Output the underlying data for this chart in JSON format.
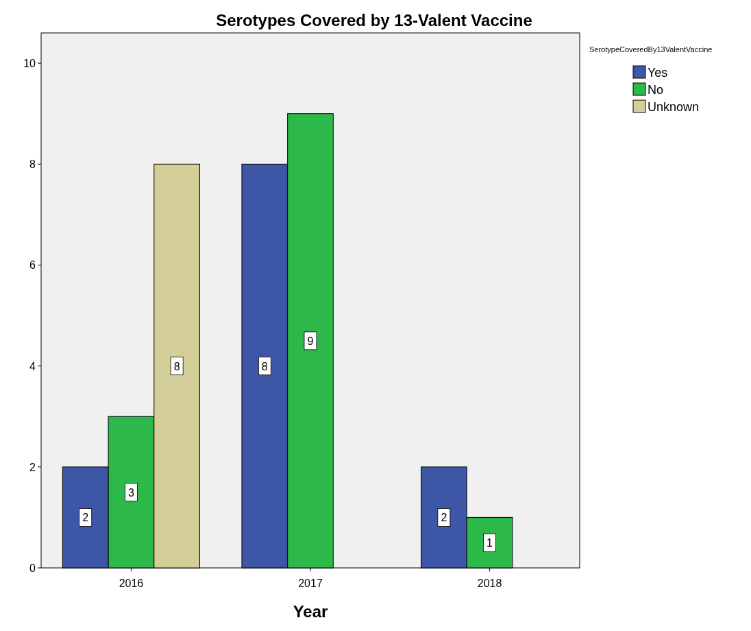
{
  "chart_data": {
    "type": "bar",
    "title": "Serotypes Covered by 13-Valent Vaccine",
    "xlabel": "Year",
    "legend_title": "SerotypeCoveredBy13ValentVaccine",
    "categories": [
      "2016",
      "2017",
      "2018"
    ],
    "series": [
      {
        "name": "Yes",
        "color": "#3d56a6",
        "values": [
          2,
          8,
          2
        ]
      },
      {
        "name": "No",
        "color": "#2db84a",
        "values": [
          3,
          9,
          1
        ]
      },
      {
        "name": "Unknown",
        "color": "#d4cf98",
        "values": [
          8,
          null,
          null
        ]
      }
    ],
    "ylim": [
      0,
      10.6
    ],
    "yticks": [
      0,
      2,
      4,
      6,
      8,
      10
    ],
    "grid": false,
    "legend": "top right",
    "data_labels": true
  }
}
